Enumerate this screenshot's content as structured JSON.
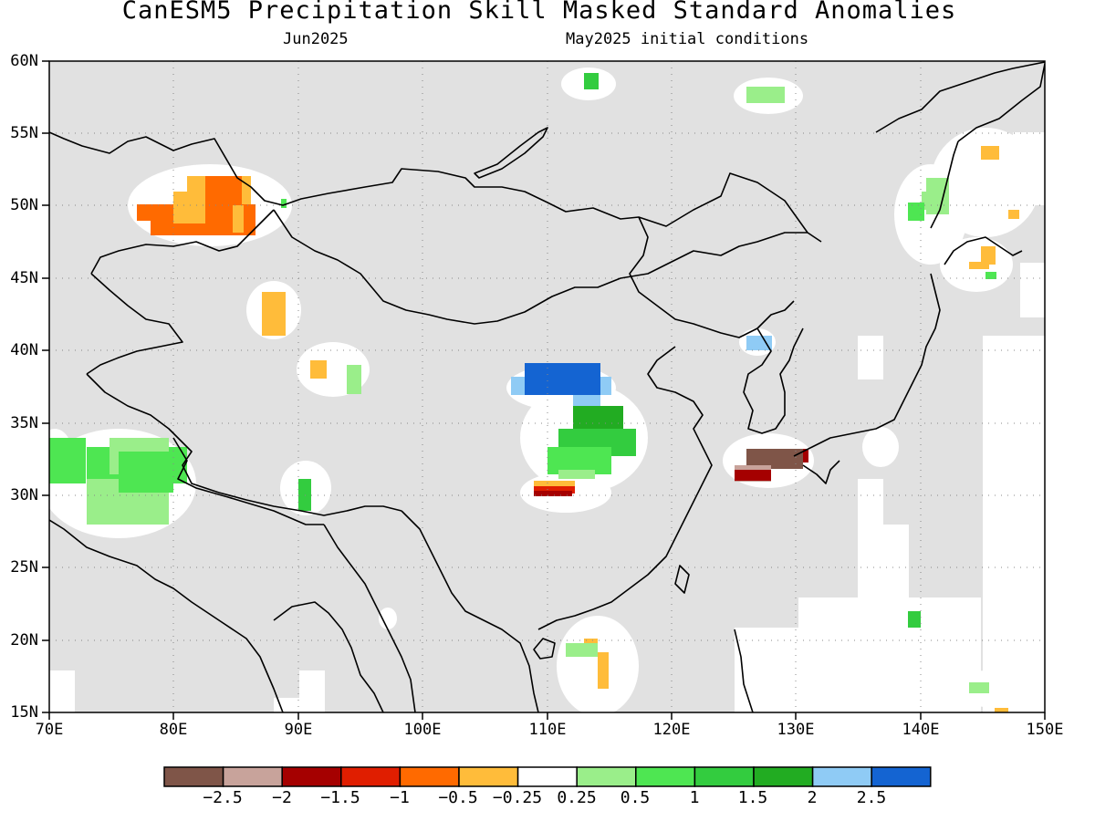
{
  "figure": {
    "title": "CanESM5 Precipitation Skill Masked Standard Anomalies",
    "subtitle_left": "Jun2025",
    "subtitle_right": "May2025 initial conditions"
  },
  "map": {
    "lat_labels": [
      "60N",
      "55N",
      "50N",
      "45N",
      "40N",
      "35N",
      "30N",
      "25N",
      "20N",
      "15N"
    ],
    "lon_labels": [
      "70E",
      "80E",
      "90E",
      "100E",
      "110E",
      "120E",
      "130E",
      "140E",
      "150E"
    ],
    "lat_range": [
      15,
      60
    ],
    "lon_range": [
      70,
      150
    ],
    "grid": true,
    "background_color": "#e1e1e1"
  },
  "colorbar": {
    "colors": [
      "#7f5548",
      "#c8a39b",
      "#a50000",
      "#e01e00",
      "#ff6a00",
      "#ffbc3a",
      "#ffffff",
      "#9aee8a",
      "#4ee652",
      "#33cc3f",
      "#22ac22",
      "#8fcbf5",
      "#1464d2"
    ],
    "labels": [
      "-2.5",
      "-2",
      "-1.5",
      "-1",
      "-0.5",
      "-0.25",
      "0.25",
      "0.5",
      "1",
      "1.5",
      "2",
      "2.5"
    ]
  }
}
